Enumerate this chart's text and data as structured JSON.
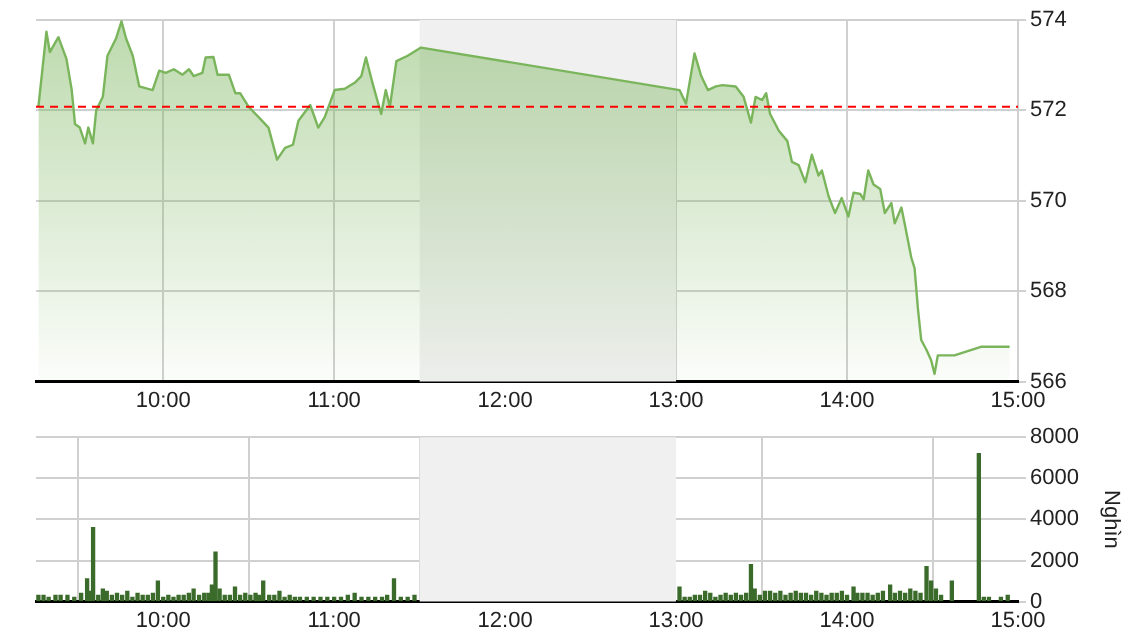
{
  "chart_data": [
    {
      "type": "area",
      "color": "#7ab55c",
      "x": [
        9.27,
        9.317,
        9.337,
        9.387,
        9.434,
        9.465,
        9.484,
        9.512,
        9.543,
        9.562,
        9.589,
        9.608,
        9.647,
        9.674,
        9.724,
        9.756,
        9.783,
        9.822,
        9.86,
        9.907,
        9.938,
        9.977,
        10.015,
        10.062,
        10.113,
        10.151,
        10.178,
        10.229,
        10.248,
        10.294,
        10.318,
        10.384,
        10.422,
        10.45,
        10.5,
        10.558,
        10.616,
        10.666,
        10.713,
        10.759,
        10.791,
        10.86,
        10.907,
        10.945,
        11.003,
        11.062,
        11.12,
        11.159,
        11.186,
        11.224,
        11.275,
        11.302,
        11.326,
        11.364,
        11.43,
        11.508,
        13.02,
        13.058,
        13.108,
        13.147,
        13.186,
        13.233,
        13.271,
        13.349,
        13.395,
        13.438,
        13.465,
        13.503,
        13.527,
        13.55,
        13.601,
        13.651,
        13.678,
        13.717,
        13.756,
        13.794,
        13.833,
        13.853,
        13.892,
        13.93,
        13.969,
        14.008,
        14.038,
        14.078,
        14.097,
        14.124,
        14.155,
        14.194,
        14.221,
        14.259,
        14.279,
        14.318,
        14.337,
        14.376,
        14.395,
        14.415,
        14.434,
        14.465,
        14.492,
        14.512,
        14.531,
        14.628,
        14.783,
        14.951
      ],
      "values": [
        572.08,
        573.74,
        573.29,
        573.62,
        573.14,
        572.45,
        571.7,
        571.62,
        571.27,
        571.62,
        571.27,
        572.0,
        572.3,
        573.21,
        573.59,
        573.97,
        573.59,
        573.21,
        572.53,
        572.48,
        572.45,
        572.88,
        572.83,
        572.91,
        572.79,
        572.91,
        572.76,
        572.83,
        573.17,
        573.18,
        572.79,
        572.79,
        572.38,
        572.38,
        572.08,
        571.85,
        571.62,
        570.91,
        571.17,
        571.24,
        571.77,
        572.12,
        571.62,
        571.85,
        572.45,
        572.48,
        572.61,
        572.76,
        573.17,
        572.61,
        571.92,
        572.45,
        572.08,
        573.09,
        573.21,
        573.39,
        572.45,
        572.15,
        573.26,
        572.76,
        572.45,
        572.53,
        572.56,
        572.53,
        572.3,
        571.73,
        572.3,
        572.23,
        572.38,
        571.92,
        571.55,
        571.32,
        570.86,
        570.79,
        570.41,
        571.02,
        570.56,
        570.67,
        570.1,
        569.73,
        570.06,
        569.65,
        570.18,
        570.15,
        570.03,
        570.67,
        570.36,
        570.26,
        569.73,
        569.95,
        569.5,
        569.85,
        569.5,
        568.74,
        568.51,
        567.6,
        566.92,
        566.7,
        566.47,
        566.17,
        566.58,
        566.58,
        566.77,
        566.77
      ],
      "xlim": [
        9.256,
        15
      ],
      "xticks": [
        {
          "value": 10,
          "label": "10:00"
        },
        {
          "value": 11,
          "label": "11:00"
        },
        {
          "value": 12,
          "label": "12:00"
        },
        {
          "value": 13,
          "label": "13:00"
        },
        {
          "value": 14,
          "label": "14:00"
        },
        {
          "value": 15,
          "label": "15:00"
        }
      ],
      "ylim": [
        566,
        574
      ],
      "yticks": [
        566,
        568,
        570,
        572,
        574
      ],
      "grid": true,
      "ref_lines": [
        {
          "axis": "y",
          "value": 572.08,
          "color": "#ff0000",
          "line_style": "dashed"
        }
      ],
      "bands": [
        {
          "axis": "x",
          "from": 11.5,
          "to": 13,
          "color": "#f0f0f0"
        }
      ]
    },
    {
      "type": "bar",
      "color": "#3b6b2a",
      "ylabel": "Nghìn",
      "x": [
        9.27,
        9.3,
        9.33,
        9.37,
        9.4,
        9.44,
        9.48,
        9.52,
        9.555,
        9.57,
        9.59,
        9.62,
        9.647,
        9.67,
        9.7,
        9.73,
        9.76,
        9.79,
        9.82,
        9.85,
        9.88,
        9.91,
        9.94,
        9.969,
        10.0,
        10.03,
        10.06,
        10.09,
        10.12,
        10.15,
        10.178,
        10.21,
        10.24,
        10.265,
        10.285,
        10.306,
        10.33,
        10.36,
        10.39,
        10.42,
        10.45,
        10.48,
        10.51,
        10.54,
        10.56,
        10.585,
        10.62,
        10.65,
        10.68,
        10.71,
        10.74,
        10.77,
        10.8,
        10.84,
        10.88,
        10.92,
        10.96,
        11.0,
        11.04,
        11.08,
        11.12,
        11.16,
        11.2,
        11.24,
        11.28,
        11.31,
        11.35,
        11.39,
        11.43,
        11.47,
        13.02,
        13.05,
        13.08,
        13.11,
        13.14,
        13.17,
        13.2,
        13.23,
        13.26,
        13.29,
        13.32,
        13.35,
        13.38,
        13.41,
        13.438,
        13.46,
        13.49,
        13.52,
        13.55,
        13.58,
        13.61,
        13.64,
        13.67,
        13.7,
        13.73,
        13.76,
        13.79,
        13.82,
        13.85,
        13.88,
        13.91,
        13.94,
        13.97,
        14.0,
        14.038,
        14.06,
        14.09,
        14.12,
        14.15,
        14.18,
        14.21,
        14.252,
        14.28,
        14.31,
        14.34,
        14.37,
        14.4,
        14.43,
        14.465,
        14.492,
        14.52,
        14.55,
        14.613,
        14.771,
        14.8,
        14.83,
        14.9,
        14.94
      ],
      "values": [
        300,
        300,
        200,
        300,
        300,
        300,
        200,
        400,
        1100,
        500,
        3600,
        300,
        600,
        500,
        300,
        400,
        300,
        500,
        200,
        400,
        300,
        300,
        400,
        1000,
        200,
        300,
        200,
        300,
        300,
        400,
        600,
        300,
        400,
        400,
        800,
        2400,
        600,
        300,
        300,
        700,
        300,
        400,
        300,
        400,
        300,
        1000,
        300,
        300,
        500,
        200,
        300,
        200,
        200,
        200,
        200,
        200,
        200,
        200,
        200,
        300,
        400,
        200,
        200,
        200,
        200,
        300,
        1100,
        200,
        200,
        300,
        700,
        200,
        200,
        300,
        300,
        500,
        400,
        200,
        300,
        400,
        300,
        400,
        300,
        400,
        1800,
        600,
        300,
        500,
        500,
        400,
        500,
        300,
        400,
        500,
        400,
        400,
        300,
        500,
        400,
        300,
        400,
        400,
        500,
        300,
        700,
        400,
        400,
        400,
        300,
        400,
        500,
        800,
        400,
        500,
        400,
        600,
        500,
        400,
        1700,
        1000,
        600,
        300,
        1000,
        7200,
        200,
        200,
        200,
        300
      ],
      "xlim": [
        9.256,
        15
      ],
      "xticks": [
        {
          "value": 10,
          "label": "10:00"
        },
        {
          "value": 11,
          "label": "11:00"
        },
        {
          "value": 12,
          "label": "12:00"
        },
        {
          "value": 13,
          "label": "13:00"
        },
        {
          "value": 14,
          "label": "14:00"
        },
        {
          "value": 15,
          "label": "15:00"
        }
      ],
      "ylim": [
        0,
        8000
      ],
      "yticks": [
        0,
        2000,
        4000,
        6000,
        8000
      ],
      "grid": true,
      "bands": [
        {
          "axis": "x",
          "from": 11.5,
          "to": 13,
          "color": "#f0f0f0"
        }
      ]
    }
  ]
}
